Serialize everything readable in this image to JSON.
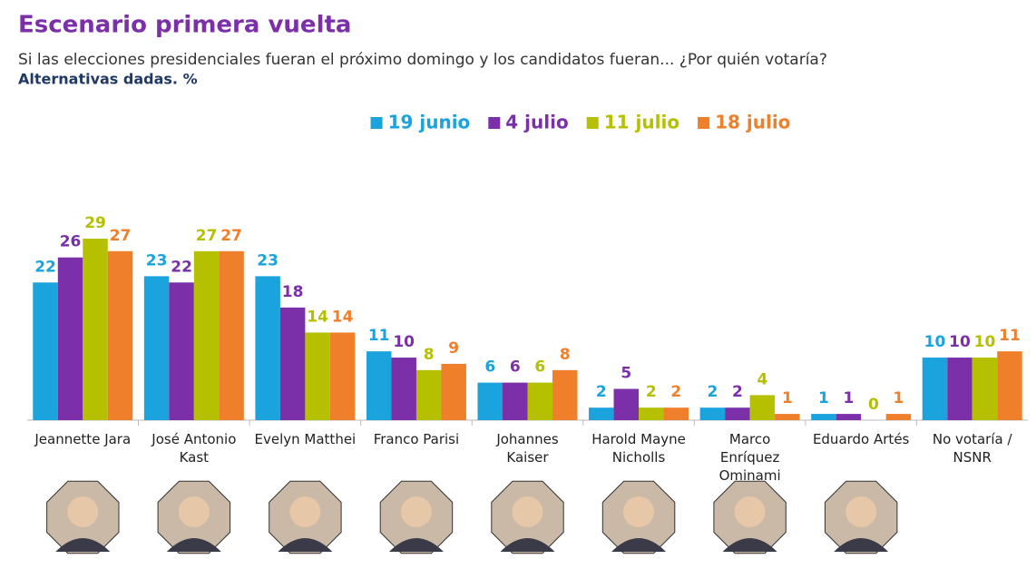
{
  "chart_data": {
    "type": "bar",
    "title": "Escenario primera vuelta",
    "subtitle": "Si las elecciones presidenciales fueran el próximo domingo y los candidatos fueran... ¿Por quién votaría?",
    "note": "Alternativas dadas. %",
    "categories": [
      "Jeannette Jara",
      "José Antonio Kast",
      "Evelyn Matthei",
      "Franco Parisi",
      "Johannes Kaiser",
      "Harold Mayne Nicholls",
      "Marco Enríquez Ominami",
      "Eduardo Artés",
      "No votaría / NSNR"
    ],
    "series": [
      {
        "name": "19 junio",
        "color": "#1aa3dc",
        "values": [
          22,
          23,
          23,
          11,
          6,
          2,
          2,
          1,
          10
        ]
      },
      {
        "name": "4 julio",
        "color": "#7b2fa8",
        "values": [
          26,
          22,
          18,
          10,
          6,
          5,
          2,
          1,
          10
        ]
      },
      {
        "name": "11 julio",
        "color": "#b5c000",
        "values": [
          29,
          27,
          14,
          8,
          6,
          2,
          4,
          0,
          10
        ]
      },
      {
        "name": "18 julio",
        "color": "#f07f2c",
        "values": [
          27,
          27,
          14,
          9,
          8,
          2,
          1,
          1,
          11
        ]
      }
    ]
  }
}
